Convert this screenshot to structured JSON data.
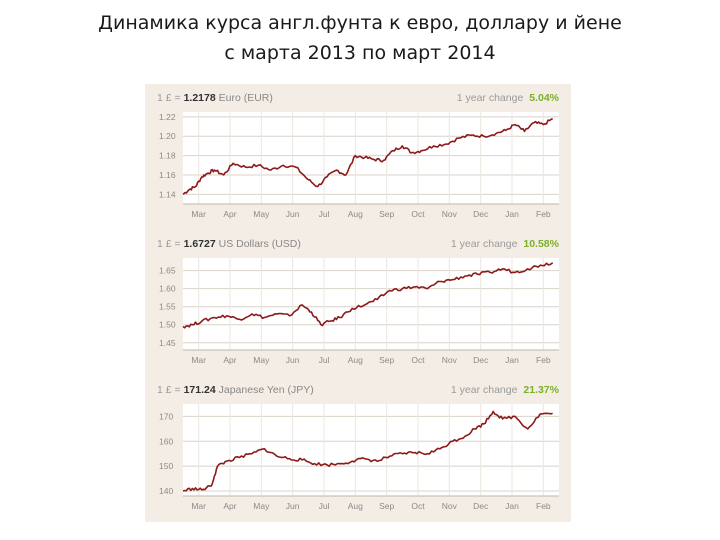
{
  "title": {
    "line1": "Динамика курса англ.фунта к евро, доллару и йене",
    "line2": "с марта 2013 по март 2014"
  },
  "colors": {
    "line": "#8b1a1a",
    "change": "#7bb02a",
    "panel_bg": "#f3ede5",
    "grid": "#d8d2ca"
  },
  "chart_data": [
    {
      "type": "line",
      "header_prefix": "1 £ =",
      "rate": "1.2178",
      "currency": "Euro (EUR)",
      "change_label": "1 year change",
      "change_value": "5.04%",
      "ylim": [
        1.13,
        1.225
      ],
      "yticks": [
        "1.22",
        "1.20",
        "1.18",
        "1.16",
        "1.14"
      ],
      "ytick_values": [
        1.22,
        1.2,
        1.18,
        1.16,
        1.14
      ],
      "xticks": [
        "Mar",
        "Apr",
        "May",
        "Jun",
        "Jul",
        "Aug",
        "Sep",
        "Oct",
        "Nov",
        "Dec",
        "Jan",
        "Feb"
      ],
      "x": [
        0,
        0.2,
        0.4,
        0.6,
        0.8,
        1.0,
        1.3,
        1.6,
        2.0,
        2.4,
        2.8,
        3.2,
        3.6,
        4.0,
        4.3,
        4.6,
        4.9,
        5.2,
        5.5,
        5.8,
        6.1,
        6.4,
        6.7,
        7.0,
        7.3,
        7.6,
        8.0,
        8.4,
        8.8,
        9.2,
        9.6,
        10.0,
        10.3,
        10.6,
        10.9,
        11.2,
        11.5,
        11.8
      ],
      "values": [
        1.14,
        1.145,
        1.148,
        1.158,
        1.162,
        1.165,
        1.16,
        1.172,
        1.168,
        1.17,
        1.165,
        1.17,
        1.168,
        1.155,
        1.148,
        1.158,
        1.165,
        1.16,
        1.18,
        1.178,
        1.176,
        1.175,
        1.185,
        1.19,
        1.183,
        1.185,
        1.19,
        1.192,
        1.198,
        1.201,
        1.2,
        1.203,
        1.206,
        1.212,
        1.205,
        1.214,
        1.212,
        1.218
      ]
    },
    {
      "type": "line",
      "header_prefix": "1 £ =",
      "rate": "1.6727",
      "currency": "US Dollars (USD)",
      "change_label": "1 year change",
      "change_value": "10.58%",
      "ylim": [
        1.43,
        1.685
      ],
      "yticks": [
        "1.65",
        "1.60",
        "1.55",
        "1.50",
        "1.45"
      ],
      "ytick_values": [
        1.65,
        1.6,
        1.55,
        1.5,
        1.45
      ],
      "xticks": [
        "Mar",
        "Apr",
        "May",
        "Jun",
        "Jul",
        "Aug",
        "Sep",
        "Oct",
        "Nov",
        "Dec",
        "Jan",
        "Feb"
      ],
      "x": [
        0,
        0.3,
        0.6,
        1.0,
        1.4,
        1.8,
        2.2,
        2.6,
        3.0,
        3.4,
        3.8,
        4.1,
        4.4,
        4.7,
        5.0,
        5.4,
        5.8,
        6.2,
        6.6,
        7.0,
        7.4,
        7.8,
        8.2,
        8.6,
        9.0,
        9.4,
        9.8,
        10.2,
        10.6,
        11.0,
        11.4,
        11.8
      ],
      "values": [
        1.495,
        1.5,
        1.51,
        1.52,
        1.525,
        1.515,
        1.53,
        1.52,
        1.53,
        1.525,
        1.555,
        1.535,
        1.5,
        1.51,
        1.52,
        1.545,
        1.555,
        1.57,
        1.595,
        1.6,
        1.605,
        1.6,
        1.62,
        1.625,
        1.635,
        1.64,
        1.645,
        1.655,
        1.645,
        1.655,
        1.665,
        1.672
      ]
    },
    {
      "type": "line",
      "header_prefix": "1 £ =",
      "rate": "171.24",
      "currency": "Japanese Yen (JPY)",
      "change_label": "1 year change",
      "change_value": "21.37%",
      "ylim": [
        138,
        175
      ],
      "yticks": [
        "170",
        "160",
        "150",
        "140"
      ],
      "ytick_values": [
        170,
        160,
        150,
        140
      ],
      "xticks": [
        "Mar",
        "Apr",
        "May",
        "Jun",
        "Jul",
        "Aug",
        "Sep",
        "Oct",
        "Nov",
        "Dec",
        "Jan",
        "Feb"
      ],
      "x": [
        0,
        0.3,
        0.6,
        0.9,
        1.1,
        1.4,
        1.8,
        2.2,
        2.6,
        3.0,
        3.4,
        3.8,
        4.2,
        4.6,
        5.0,
        5.4,
        5.8,
        6.2,
        6.6,
        7.0,
        7.4,
        7.8,
        8.2,
        8.6,
        9.0,
        9.3,
        9.6,
        9.9,
        10.2,
        10.6,
        11.0,
        11.4,
        11.8
      ],
      "values": [
        140,
        141,
        140.5,
        142,
        150,
        152,
        153.5,
        155,
        157,
        154,
        153,
        152.5,
        151,
        150.5,
        151,
        152,
        153,
        152,
        154,
        155,
        155.5,
        155,
        157,
        160,
        162,
        165,
        167,
        172,
        169,
        170,
        165,
        171,
        171.2
      ]
    }
  ]
}
